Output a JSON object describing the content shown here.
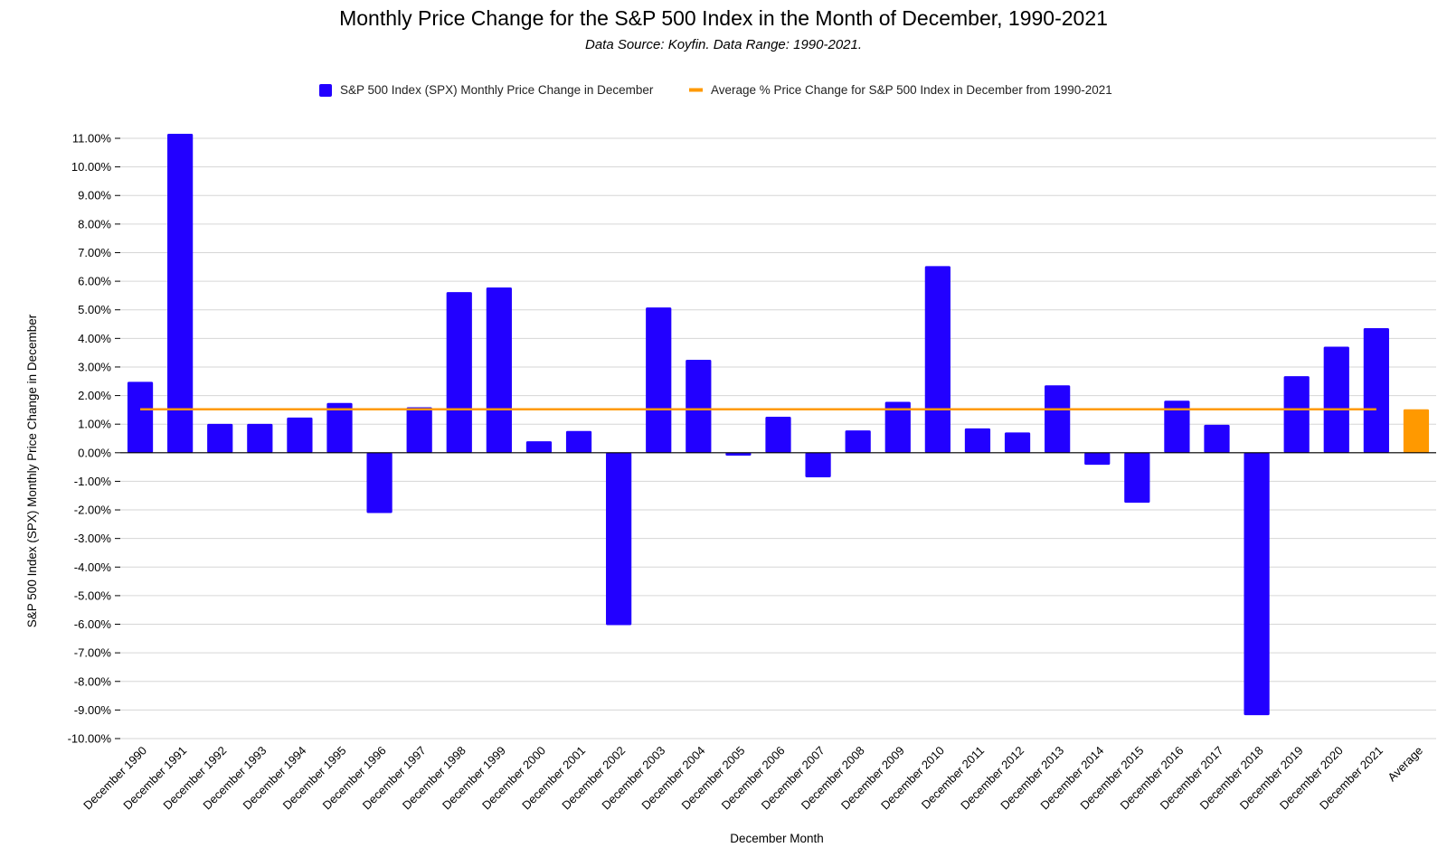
{
  "chart_data": {
    "type": "bar",
    "title": "Monthly Price Change for the S&P 500 Index in the Month of December, 1990-2021",
    "subtitle": "Data Source: Koyfin. Data Range: 1990-2021.",
    "xlabel": "December Month",
    "ylabel": "S&P 500 Index (SPX) Monthly Price Change in December",
    "ylim": [
      -10,
      11
    ],
    "y_step": 1,
    "y_tick_format": "percent_2dp",
    "grid": true,
    "legend_position": "top-center",
    "categories": [
      "December 1990",
      "December 1991",
      "December 1992",
      "December 1993",
      "December 1994",
      "December 1995",
      "December 1996",
      "December 1997",
      "December 1998",
      "December 1999",
      "December 2000",
      "December 2001",
      "December 2002",
      "December 2003",
      "December 2004",
      "December 2005",
      "December 2006",
      "December 2007",
      "December 2008",
      "December 2009",
      "December 2010",
      "December 2011",
      "December 2012",
      "December 2013",
      "December 2014",
      "December 2015",
      "December 2016",
      "December 2017",
      "December 2018",
      "December 2019",
      "December 2020",
      "December 2021",
      "Average"
    ],
    "series": [
      {
        "name": "S&P 500 Index (SPX) Monthly Price Change in December",
        "kind": "bar",
        "color": "#2200ff",
        "values": [
          2.48,
          11.16,
          1.01,
          1.01,
          1.23,
          1.74,
          -2.11,
          1.59,
          5.62,
          5.78,
          0.4,
          0.76,
          -6.03,
          5.08,
          3.25,
          -0.1,
          1.26,
          -0.86,
          0.78,
          1.78,
          6.53,
          0.85,
          0.71,
          2.36,
          -0.42,
          -1.75,
          1.82,
          0.98,
          -9.18,
          2.68,
          3.71,
          4.36,
          null
        ]
      },
      {
        "name": "Average % Price Change for S&P 500 Index in December from 1990-2021",
        "kind": "line",
        "color": "#ff9900",
        "value": 1.52
      }
    ],
    "average_bar": {
      "category": "Average",
      "value": 1.52,
      "color": "#ff9900"
    }
  }
}
